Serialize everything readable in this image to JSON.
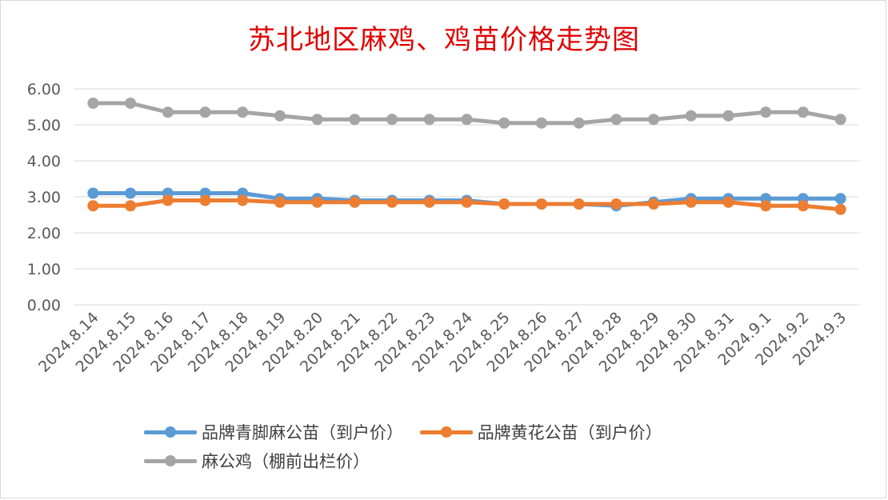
{
  "chart_data": {
    "type": "line",
    "title": "苏北地区麻鸡、鸡苗价格走势图",
    "categories": [
      "2024.8.14",
      "2024.8.15",
      "2024.8.16",
      "2024.8.17",
      "2024.8.18",
      "2024.8.19",
      "2024.8.20",
      "2024.8.21",
      "2024.8.22",
      "2024.8.23",
      "2024.8.24",
      "2024.8.25",
      "2024.8.26",
      "2024.8.27",
      "2024.8.28",
      "2024.8.29",
      "2024.8.30",
      "2024.8.31",
      "2024.9.1",
      "2024.9.2",
      "2024.9.3"
    ],
    "y_ticks": [
      "0.00",
      "1.00",
      "2.00",
      "3.00",
      "4.00",
      "5.00",
      "6.00"
    ],
    "ylim": [
      0,
      6
    ],
    "grid": true,
    "legend_position": "bottom",
    "series": [
      {
        "name": "品牌青脚麻公苗（到户价）",
        "color": "#5b9bd5",
        "values": [
          3.1,
          3.1,
          3.1,
          3.1,
          3.1,
          2.95,
          2.95,
          2.9,
          2.9,
          2.9,
          2.9,
          2.8,
          2.8,
          2.8,
          2.75,
          2.85,
          2.95,
          2.95,
          2.95,
          2.95,
          2.95
        ]
      },
      {
        "name": "品牌黄花公苗（到户价）",
        "color": "#ed7d31",
        "values": [
          2.75,
          2.75,
          2.9,
          2.9,
          2.9,
          2.85,
          2.85,
          2.85,
          2.85,
          2.85,
          2.85,
          2.8,
          2.8,
          2.8,
          2.8,
          2.8,
          2.85,
          2.85,
          2.75,
          2.75,
          2.65
        ]
      },
      {
        "name": "麻公鸡（棚前出栏价）",
        "color": "#a5a5a5",
        "values": [
          5.6,
          5.6,
          5.35,
          5.35,
          5.35,
          5.25,
          5.15,
          5.15,
          5.15,
          5.15,
          5.15,
          5.05,
          5.05,
          5.05,
          5.15,
          5.15,
          5.25,
          5.25,
          5.35,
          5.35,
          5.15
        ]
      }
    ]
  }
}
